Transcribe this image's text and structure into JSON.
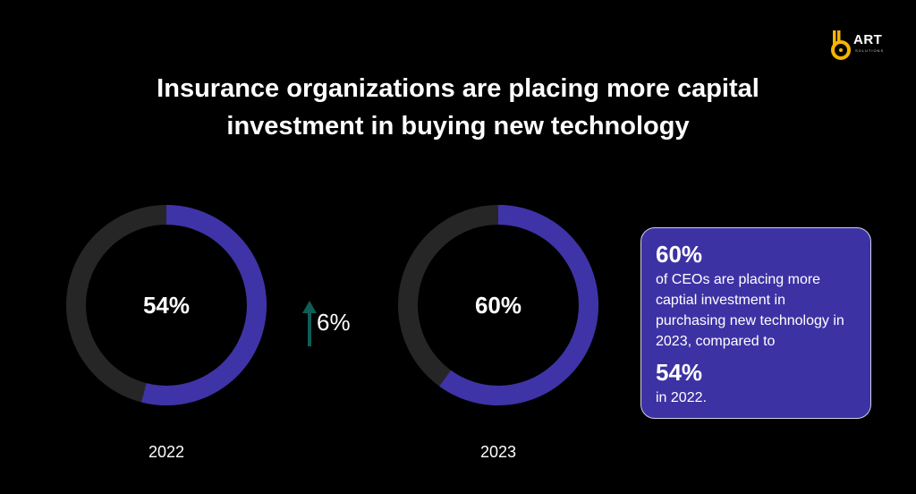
{
  "header": {
    "title_line1": "Insurance organizations are placing more capital",
    "title_line2": "investment in buying new technology"
  },
  "logo": {
    "word": "ART",
    "sub": "SOLUTIONS",
    "colors": {
      "accent": "#f5b400"
    }
  },
  "chart_data": {
    "type": "pie",
    "series": [
      {
        "name": "2022",
        "value": 54,
        "label": "54%"
      },
      {
        "name": "2023",
        "value": 60,
        "label": "60%"
      }
    ],
    "colors": {
      "filled": "#3f33a8",
      "track": "#262626"
    }
  },
  "delta": {
    "label": "6%",
    "icon": "up-arrow-icon",
    "color": "#0f5d55"
  },
  "card": {
    "stat1": "60%",
    "text1": "of CEOs are placing more captial investment in purchasing new technology in 2023, compared to",
    "stat2": "54%",
    "text2": "in 2022."
  }
}
